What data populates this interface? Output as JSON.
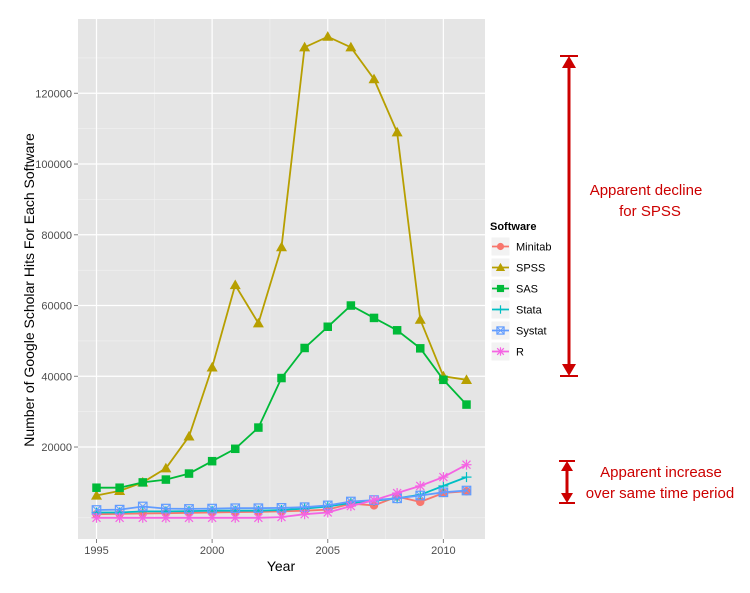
{
  "chart_data": {
    "type": "line",
    "title": "",
    "xlabel": "Year",
    "ylabel": "Number of Google Scholar Hits For Each Software",
    "xlim": [
      1994.2,
      2011.8
    ],
    "ylim": [
      -6000,
      141000
    ],
    "x_ticks": [
      1995,
      2000,
      2005,
      2010
    ],
    "y_ticks": [
      20000,
      40000,
      60000,
      80000,
      100000,
      120000
    ],
    "grid": true,
    "legend": {
      "title": "Software",
      "position": "right"
    },
    "x": [
      1995,
      1996,
      1997,
      1998,
      1999,
      2000,
      2001,
      2002,
      2003,
      2004,
      2005,
      2006,
      2007,
      2008,
      2009,
      2010,
      2011
    ],
    "series": [
      {
        "name": "Minitab",
        "color": "#F8766D",
        "marker": "circle",
        "values": [
          1000,
          1100,
          1200,
          1300,
          1400,
          1500,
          1600,
          1700,
          1800,
          2000,
          2300,
          4000,
          3500,
          6000,
          4500,
          7000,
          7500
        ]
      },
      {
        "name": "SPSS",
        "color": "#B79F00",
        "marker": "triangle",
        "values": [
          6300,
          7600,
          10000,
          14000,
          23000,
          42500,
          65800,
          55000,
          76500,
          133000,
          136000,
          133000,
          124000,
          109000,
          56000,
          40000,
          39000
        ]
      },
      {
        "name": "SAS",
        "color": "#00BA38",
        "marker": "square",
        "values": [
          8500,
          8500,
          10000,
          10800,
          12500,
          16000,
          19500,
          25500,
          39500,
          48000,
          54000,
          60000,
          56500,
          53000,
          47900,
          39000,
          32000
        ]
      },
      {
        "name": "Stata",
        "color": "#00BFC4",
        "marker": "plus",
        "values": [
          1500,
          1500,
          1800,
          1800,
          1900,
          2000,
          2000,
          2000,
          2200,
          2600,
          3200,
          4200,
          4800,
          5500,
          6500,
          9000,
          11500
        ]
      },
      {
        "name": "Systat",
        "color": "#619CFF",
        "marker": "square-x",
        "values": [
          2200,
          2300,
          3200,
          2600,
          2500,
          2600,
          2700,
          2700,
          2800,
          3000,
          3500,
          4600,
          5000,
          5500,
          6300,
          7200,
          7700
        ]
      },
      {
        "name": "R",
        "color": "#F564E3",
        "marker": "asterisk",
        "values": [
          0,
          0,
          0,
          0,
          0,
          0,
          0,
          0,
          200,
          1000,
          1500,
          3300,
          5000,
          7000,
          9000,
          11500,
          15000
        ]
      }
    ]
  },
  "annotations": {
    "decline_line1": "Apparent decline",
    "decline_line2": "for SPSS",
    "increase_line1": "Apparent increase",
    "increase_line2": "over same time period",
    "color": "#cc0000"
  }
}
